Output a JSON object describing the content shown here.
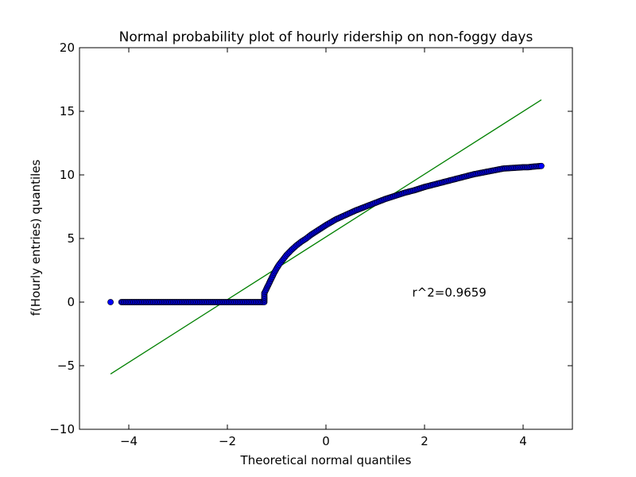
{
  "chart_data": {
    "type": "scatter",
    "title": "Normal probability plot of hourly ridership on non-foggy days",
    "xlabel": "Theoretical normal quantiles",
    "ylabel": "f(Hourly entries) quantiles",
    "xlim": [
      -5,
      5
    ],
    "ylim": [
      -10,
      20
    ],
    "xticks": [
      -4,
      -2,
      0,
      2,
      4
    ],
    "yticks": [
      -10,
      -5,
      0,
      5,
      10,
      15,
      20
    ],
    "xtick_labels": [
      "−4",
      "−2",
      "0",
      "2",
      "4"
    ],
    "ytick_labels": [
      "−10",
      "−5",
      "0",
      "5",
      "10",
      "15",
      "20"
    ],
    "grid": false,
    "annotation": {
      "text": "r^2=0.9659",
      "x": 1.75,
      "y": 0.45
    },
    "fit_line": {
      "color": "#008000",
      "x": [
        -4.37,
        4.37
      ],
      "y": [
        -5.65,
        15.9
      ]
    },
    "series": [
      {
        "marker_color": "#0000ff",
        "edge_color": "#000000",
        "x": [
          -4.37,
          -4.15,
          -4.05,
          -3.95,
          -3.85,
          -3.75,
          -3.65,
          -3.55,
          -3.45,
          -3.35,
          -3.25,
          -3.15,
          -3.05,
          -2.95,
          -2.85,
          -2.75,
          -2.65,
          -2.55,
          -2.45,
          -2.35,
          -2.25,
          -2.15,
          -2.05,
          -1.95,
          -1.85,
          -1.75,
          -1.65,
          -1.55,
          -1.45,
          -1.35,
          -1.25,
          -1.25,
          -1.2,
          -1.15,
          -1.1,
          -1.05,
          -1.0,
          -0.95,
          -0.9,
          -0.8,
          -0.7,
          -0.6,
          -0.5,
          -0.4,
          -0.3,
          -0.2,
          -0.1,
          0.0,
          0.2,
          0.4,
          0.6,
          0.8,
          1.0,
          1.2,
          1.4,
          1.6,
          1.8,
          2.0,
          2.2,
          2.4,
          2.6,
          2.8,
          3.0,
          3.2,
          3.4,
          3.6,
          3.8,
          4.0,
          4.1,
          4.2,
          4.37
        ],
        "y": [
          0,
          0,
          0,
          0,
          0,
          0,
          0,
          0,
          0,
          0,
          0,
          0,
          0,
          0,
          0,
          0,
          0,
          0,
          0,
          0,
          0,
          0,
          0,
          0,
          0,
          0,
          0,
          0,
          0,
          0,
          0,
          0.7,
          1.1,
          1.5,
          1.9,
          2.3,
          2.65,
          2.95,
          3.2,
          3.7,
          4.1,
          4.45,
          4.75,
          5.0,
          5.3,
          5.55,
          5.8,
          6.05,
          6.5,
          6.85,
          7.2,
          7.5,
          7.8,
          8.1,
          8.35,
          8.6,
          8.8,
          9.05,
          9.25,
          9.45,
          9.65,
          9.85,
          10.05,
          10.2,
          10.35,
          10.5,
          10.55,
          10.6,
          10.6,
          10.65,
          10.7
        ]
      }
    ]
  }
}
